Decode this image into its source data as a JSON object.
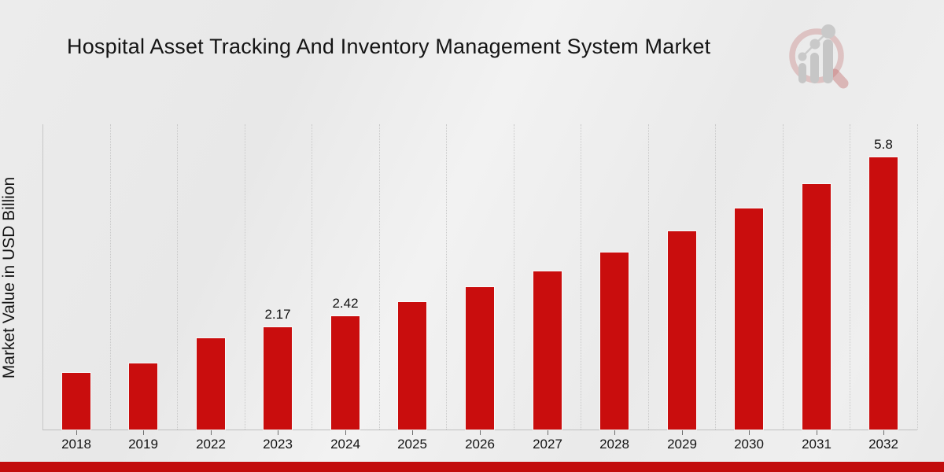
{
  "title": "Hospital Asset Tracking And Inventory Management System Market",
  "y_axis_label": "Market Value in USD Billion",
  "colors": {
    "bar": "#c90d0d",
    "bar_edge": "rgba(255,255,255,0.65)",
    "banner": "#c20c0c",
    "background": "#ebebeb",
    "gridline": "#c9c9c9",
    "axis": "#bfbfbf",
    "text": "#141414"
  },
  "logo": {
    "name": "magnifier-bar-chart-logo"
  },
  "chart_data": {
    "type": "bar",
    "title": "Hospital Asset Tracking And Inventory Management System Market",
    "xlabel": "",
    "ylabel": "Market Value in USD Billion",
    "categories": [
      "2018",
      "2019",
      "2022",
      "2023",
      "2024",
      "2025",
      "2026",
      "2027",
      "2028",
      "2029",
      "2030",
      "2031",
      "2032"
    ],
    "values": [
      1.21,
      1.4,
      1.94,
      2.17,
      2.42,
      2.72,
      3.03,
      3.37,
      3.77,
      4.22,
      4.7,
      5.23,
      5.8
    ],
    "bar_labels": [
      "",
      "",
      "",
      "2.17",
      "2.42",
      "",
      "",
      "",
      "",
      "",
      "",
      "",
      "5.8"
    ],
    "ylim": [
      0,
      6.5
    ],
    "grid": "vertical-dotted",
    "legend": "none",
    "bar_color": "#c90d0d"
  }
}
